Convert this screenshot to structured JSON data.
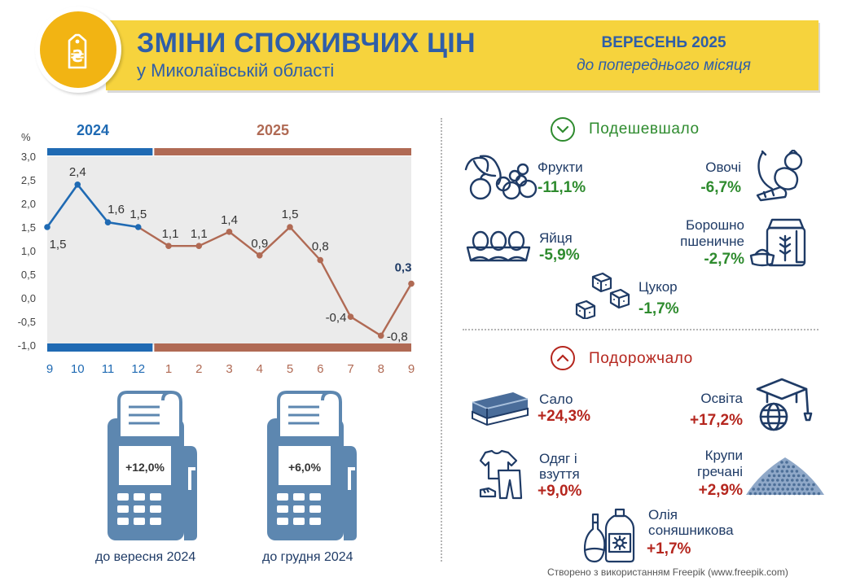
{
  "header": {
    "title": "ЗМІНИ СПОЖИВЧИХ ЦІН",
    "subtitle": "у Миколаївській області",
    "period": "ВЕРЕСЕНЬ 2025",
    "period_sub": "до попереднього місяця",
    "logo_icon": "hryvnia-price-tag-icon",
    "logo_symbol": "₴"
  },
  "chart_data": {
    "type": "line",
    "unit_label": "%",
    "year_labels": [
      "2024",
      "2025"
    ],
    "categories": [
      "9",
      "10",
      "11",
      "12",
      "1",
      "2",
      "3",
      "4",
      "5",
      "6",
      "7",
      "8",
      "9"
    ],
    "values": [
      1.5,
      2.4,
      1.6,
      1.5,
      1.1,
      1.1,
      1.4,
      0.9,
      1.5,
      0.8,
      -0.4,
      -0.8,
      0.3
    ],
    "labels": [
      "1,5",
      "2,4",
      "1,6",
      "1,5",
      "1,1",
      "1,1",
      "1,4",
      "0,9",
      "1,5",
      "0,8",
      "-0,4",
      "-0,8",
      "0,3"
    ],
    "yticks": [
      "3,0",
      "2,5",
      "2,0",
      "1,5",
      "1,0",
      "0,5",
      "0,0",
      "-0,5",
      "-1,0"
    ],
    "ylim": [
      -1.0,
      3.0
    ],
    "colors": {
      "2024": "#1f6ab3",
      "2025": "#b06a54",
      "background": "#ebebeb"
    }
  },
  "receipts": [
    {
      "value": "+12,0%",
      "caption": "до вересня 2024"
    },
    {
      "value": "+6,0%",
      "caption": "до грудня 2024"
    }
  ],
  "cheaper": {
    "title": "Подешевшало",
    "icon": "chevron-down-circle-icon",
    "items": [
      {
        "name": "Фрукти",
        "value": "-11,1%",
        "icon": "fruits-icon"
      },
      {
        "name": "Овочі",
        "value": "-6,7%",
        "icon": "vegetables-icon"
      },
      {
        "name": "Яйця",
        "value": "-5,9%",
        "icon": "eggs-icon"
      },
      {
        "name_line1": "Борошно",
        "name_line2": "пшеничне",
        "value": "-2,7%",
        "icon": "flour-icon"
      },
      {
        "name": "Цукор",
        "value": "-1,7%",
        "icon": "sugar-cubes-icon"
      }
    ]
  },
  "pricier": {
    "title": "Подорожчало",
    "icon": "chevron-up-circle-icon",
    "items": [
      {
        "name": "Сало",
        "value": "+24,3%",
        "icon": "lard-icon"
      },
      {
        "name": "Освіта",
        "value": "+17,2%",
        "icon": "graduation-cap-globe-icon"
      },
      {
        "name_line1": "Одяг і",
        "name_line2": "взуття",
        "value": "+9,0%",
        "icon": "clothes-icon"
      },
      {
        "name_line1": "Крупи",
        "name_line2": "гречані",
        "value": "+2,9%",
        "icon": "buckwheat-icon"
      },
      {
        "name_line1": "Олія",
        "name_line2": "соняшникова",
        "value": "+1,7%",
        "icon": "oil-bottle-icon"
      }
    ]
  },
  "footer": "Створено з використанням Freepik (www.freepik.com)"
}
